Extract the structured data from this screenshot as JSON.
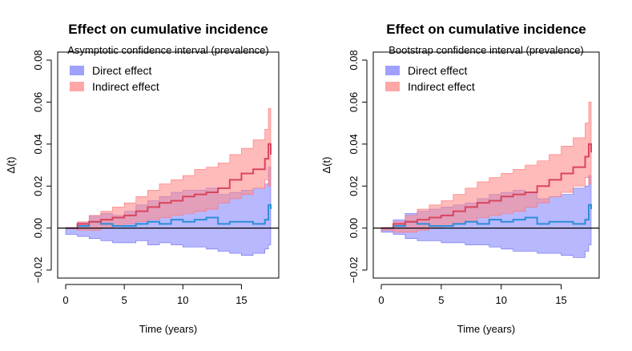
{
  "chart_data": [
    {
      "type": "area",
      "title": "Effect on cumulative incidence",
      "subtitle": "Asymptotic confidence interval (prevalence)",
      "xlabel": "Time (years)",
      "ylabel": "Δ(t)",
      "xlim": [
        0,
        17.5
      ],
      "ylim": [
        -0.02,
        0.08
      ],
      "xticks": [
        0,
        5,
        10,
        15
      ],
      "yticks": [
        -0.02,
        0.0,
        0.02,
        0.04,
        0.06,
        0.08
      ],
      "ytick_labels": [
        "−0.02",
        "0.00",
        "0.02",
        "0.04",
        "0.06",
        "0.08"
      ],
      "reference_line": 0,
      "legend": {
        "position": "top-left",
        "entries": [
          {
            "label": "Direct effect",
            "color": "#8080ff"
          },
          {
            "label": "Indirect effect",
            "color": "#ff8888"
          }
        ]
      },
      "series": [
        {
          "name": "Direct effect",
          "fill_color": "#8c8cff",
          "line_color": "#2b8fd8",
          "x": [
            0,
            1,
            2,
            3,
            4,
            5,
            6,
            7,
            8,
            9,
            10,
            11,
            12,
            13,
            14,
            15,
            16,
            17,
            17.3,
            17.5
          ],
          "estimate": [
            0.0,
            0.001,
            0.003,
            0.002,
            0.001,
            0.001,
            0.002,
            0.003,
            0.002,
            0.004,
            0.003,
            0.004,
            0.005,
            0.002,
            0.003,
            0.003,
            0.002,
            0.004,
            0.011,
            0.009
          ],
          "lower": [
            0.0,
            -0.003,
            -0.004,
            -0.005,
            -0.006,
            -0.007,
            -0.007,
            -0.006,
            -0.008,
            -0.007,
            -0.008,
            -0.009,
            -0.009,
            -0.01,
            -0.011,
            -0.012,
            -0.013,
            -0.012,
            -0.01,
            -0.008
          ],
          "upper": [
            0.0,
            0.003,
            0.006,
            0.007,
            0.006,
            0.008,
            0.011,
            0.013,
            0.015,
            0.017,
            0.018,
            0.018,
            0.019,
            0.016,
            0.017,
            0.018,
            0.019,
            0.021,
            0.029,
            0.024
          ]
        },
        {
          "name": "Indirect effect",
          "fill_color": "#ff8c8c",
          "line_color": "#d9455f",
          "x": [
            0,
            1,
            2,
            3,
            4,
            5,
            6,
            7,
            8,
            9,
            10,
            11,
            12,
            13,
            14,
            15,
            16,
            17,
            17.3,
            17.5
          ],
          "estimate": [
            0.0,
            0.002,
            0.003,
            0.004,
            0.005,
            0.006,
            0.008,
            0.01,
            0.012,
            0.013,
            0.015,
            0.016,
            0.017,
            0.019,
            0.023,
            0.026,
            0.028,
            0.033,
            0.04,
            0.035
          ],
          "lower": [
            0.0,
            0.0,
            -0.001,
            -0.001,
            0.0,
            0.001,
            0.002,
            0.003,
            0.004,
            0.005,
            0.006,
            0.007,
            0.008,
            0.009,
            0.012,
            0.014,
            0.016,
            0.019,
            0.023,
            0.02
          ],
          "upper": [
            0.0,
            0.003,
            0.006,
            0.008,
            0.01,
            0.012,
            0.015,
            0.018,
            0.021,
            0.023,
            0.025,
            0.028,
            0.029,
            0.031,
            0.035,
            0.038,
            0.042,
            0.047,
            0.057,
            0.052
          ]
        }
      ]
    },
    {
      "type": "area",
      "title": "Effect on cumulative incidence",
      "subtitle": "Bootstrap confidence interval (prevalence)",
      "xlabel": "Time (years)",
      "ylabel": "Δ(t)",
      "xlim": [
        0,
        17.5
      ],
      "ylim": [
        -0.02,
        0.08
      ],
      "xticks": [
        0,
        5,
        10,
        15
      ],
      "yticks": [
        -0.02,
        0.0,
        0.02,
        0.04,
        0.06,
        0.08
      ],
      "ytick_labels": [
        "−0.02",
        "0.00",
        "0.02",
        "0.04",
        "0.06",
        "0.08"
      ],
      "reference_line": 0,
      "legend": {
        "position": "top-left",
        "entries": [
          {
            "label": "Direct effect",
            "color": "#8080ff"
          },
          {
            "label": "Indirect effect",
            "color": "#ff8888"
          }
        ]
      },
      "series": [
        {
          "name": "Direct effect",
          "fill_color": "#8c8cff",
          "line_color": "#2b8fd8",
          "x": [
            0,
            1,
            2,
            3,
            4,
            5,
            6,
            7,
            8,
            9,
            10,
            11,
            12,
            13,
            14,
            15,
            16,
            17,
            17.3,
            17.5
          ],
          "estimate": [
            0.0,
            0.001,
            0.003,
            0.002,
            0.001,
            0.001,
            0.002,
            0.003,
            0.002,
            0.004,
            0.003,
            0.004,
            0.005,
            0.002,
            0.003,
            0.003,
            0.002,
            0.004,
            0.011,
            0.009
          ],
          "lower": [
            0.0,
            -0.002,
            -0.003,
            -0.005,
            -0.006,
            -0.006,
            -0.007,
            -0.007,
            -0.008,
            -0.008,
            -0.009,
            -0.01,
            -0.011,
            -0.011,
            -0.012,
            -0.012,
            -0.013,
            -0.014,
            -0.011,
            -0.008
          ],
          "upper": [
            0.0,
            0.004,
            0.007,
            0.008,
            0.009,
            0.01,
            0.011,
            0.012,
            0.014,
            0.016,
            0.017,
            0.018,
            0.017,
            0.014,
            0.015,
            0.016,
            0.019,
            0.02,
            0.025,
            0.022
          ]
        },
        {
          "name": "Indirect effect",
          "fill_color": "#ff8c8c",
          "line_color": "#d9455f",
          "x": [
            0,
            1,
            2,
            3,
            4,
            5,
            6,
            7,
            8,
            9,
            10,
            11,
            12,
            13,
            14,
            15,
            16,
            17,
            17.3,
            17.5
          ],
          "estimate": [
            0.0,
            0.002,
            0.003,
            0.004,
            0.005,
            0.006,
            0.008,
            0.01,
            0.012,
            0.013,
            0.015,
            0.016,
            0.017,
            0.02,
            0.023,
            0.026,
            0.029,
            0.034,
            0.04,
            0.036
          ],
          "lower": [
            0.0,
            -0.001,
            -0.002,
            -0.002,
            -0.001,
            0.0,
            0.001,
            0.002,
            0.003,
            0.005,
            0.006,
            0.007,
            0.008,
            0.01,
            0.012,
            0.015,
            0.017,
            0.02,
            0.024,
            0.021
          ],
          "upper": [
            0.0,
            0.003,
            0.006,
            0.009,
            0.011,
            0.013,
            0.016,
            0.019,
            0.022,
            0.024,
            0.026,
            0.028,
            0.03,
            0.032,
            0.035,
            0.039,
            0.043,
            0.05,
            0.06,
            0.054
          ]
        }
      ]
    }
  ]
}
